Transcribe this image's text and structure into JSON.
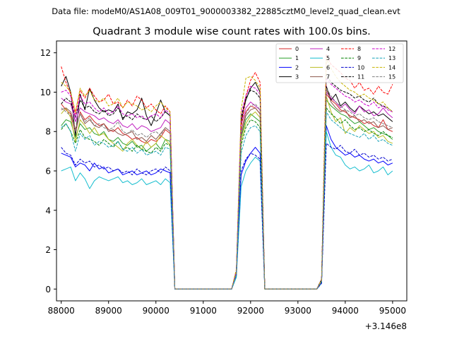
{
  "header": {
    "data_file": "Data file: modeM0/AS1A08_009T01_9000003382_22885cztM0_level2_quad_clean.evt"
  },
  "chart_data": {
    "type": "line",
    "title": "Quadrant 3 module wise count rates with 100.0s bins.",
    "xlabel": "",
    "ylabel": "",
    "x_offset_label": "+3.146e8",
    "xlim": [
      87900,
      95300
    ],
    "ylim": [
      -0.6,
      12.6
    ],
    "x_ticks": [
      88000,
      89000,
      90000,
      91000,
      92000,
      93000,
      94000,
      95000
    ],
    "x_tick_labels": [
      "88000",
      "89000",
      "90000",
      "91000",
      "92000",
      "93000",
      "94000",
      "95000"
    ],
    "y_ticks": [
      0,
      2,
      4,
      6,
      8,
      10,
      12
    ],
    "y_tick_labels": [
      "0",
      "2",
      "4",
      "6",
      "8",
      "10",
      "12"
    ],
    "grid": false,
    "legend_position": "top-right",
    "segments": [
      {
        "name": "seg1",
        "x_start": 88000,
        "step": 100,
        "count": 24
      },
      {
        "name": "seg2",
        "x_start": 91700,
        "step": 100,
        "count": 6
      },
      {
        "name": "seg3",
        "x_start": 93500,
        "step": 100,
        "count": 16
      }
    ],
    "series": [
      {
        "name": "0",
        "color": "#d62728",
        "dash": "solid",
        "values": [
          9.4,
          9.1,
          8.9,
          7.9,
          9.0,
          8.6,
          8.8,
          8.5,
          8.3,
          8.4,
          8.1,
          8.0,
          8.2,
          7.9,
          7.8,
          7.6,
          7.7,
          7.5,
          7.4,
          7.6,
          7.5,
          7.7,
          8.1,
          7.9,
          0.9,
          8.0,
          9.0,
          9.3,
          9.2,
          8.9,
          0.4,
          9.9,
          9.6,
          9.4,
          9.1,
          9.0,
          8.8,
          8.7,
          8.6,
          8.4,
          8.5,
          8.3,
          8.2,
          8.6,
          8.1,
          8.0,
          1.2
        ]
      },
      {
        "name": "1",
        "color": "#2ca02c",
        "dash": "solid",
        "values": [
          8.3,
          8.6,
          8.5,
          7.7,
          8.4,
          8.1,
          8.2,
          7.9,
          7.8,
          8.0,
          7.6,
          7.5,
          7.7,
          7.4,
          7.3,
          7.5,
          7.2,
          7.3,
          7.0,
          7.2,
          7.4,
          7.1,
          7.6,
          7.5,
          0.8,
          7.7,
          8.6,
          8.9,
          8.7,
          8.5,
          0.4,
          9.6,
          9.3,
          9.1,
          8.9,
          8.8,
          8.6,
          8.4,
          8.5,
          8.3,
          8.1,
          8.2,
          8.0,
          7.9,
          7.8,
          7.6,
          1.0
        ]
      },
      {
        "name": "2",
        "color": "#0000ff",
        "dash": "solid",
        "values": [
          6.9,
          6.8,
          6.7,
          6.2,
          6.4,
          6.3,
          6.0,
          6.4,
          6.1,
          6.2,
          5.9,
          6.0,
          6.1,
          5.8,
          5.9,
          6.0,
          5.8,
          5.9,
          6.0,
          5.8,
          5.9,
          6.1,
          6.0,
          5.9,
          0.7,
          5.8,
          6.5,
          6.9,
          7.2,
          6.9,
          0.3,
          8.3,
          7.6,
          7.2,
          7.0,
          6.8,
          6.9,
          6.7,
          6.8,
          6.6,
          6.5,
          6.6,
          6.4,
          6.5,
          6.3,
          6.4,
          0.7
        ]
      },
      {
        "name": "3",
        "color": "#000000",
        "dash": "solid",
        "values": [
          10.3,
          10.8,
          10.0,
          7.8,
          9.9,
          9.1,
          10.2,
          9.6,
          9.2,
          9.0,
          9.1,
          9.0,
          9.4,
          8.6,
          9.0,
          8.9,
          9.1,
          9.7,
          8.8,
          8.3,
          8.9,
          9.6,
          9.0,
          8.8,
          0.9,
          8.5,
          9.6,
          10.2,
          10.5,
          10.0,
          0.5,
          10.3,
          9.6,
          9.9,
          9.3,
          9.5,
          9.2,
          9.0,
          9.3,
          9.1,
          8.9,
          9.0,
          8.8,
          8.9,
          8.7,
          8.5,
          1.1
        ]
      },
      {
        "name": "4",
        "color": "#c020c0",
        "dash": "solid",
        "values": [
          9.7,
          9.5,
          9.4,
          8.5,
          9.2,
          9.0,
          8.9,
          8.8,
          8.6,
          8.7,
          8.5,
          8.4,
          8.6,
          8.3,
          8.2,
          8.4,
          8.1,
          8.3,
          8.2,
          8.0,
          8.1,
          8.2,
          8.6,
          8.4,
          0.9,
          8.3,
          9.2,
          9.5,
          9.3,
          9.1,
          0.5,
          10.0,
          9.7,
          9.5,
          9.2,
          9.4,
          9.1,
          8.9,
          9.3,
          9.0,
          9.1,
          8.8,
          8.9,
          9.2,
          8.9,
          8.7,
          1.1
        ]
      },
      {
        "name": "5",
        "color": "#17becf",
        "dash": "solid",
        "values": [
          6.0,
          6.1,
          6.2,
          5.5,
          5.9,
          5.6,
          5.1,
          5.5,
          5.7,
          5.6,
          5.5,
          5.6,
          5.7,
          5.4,
          5.5,
          5.3,
          5.4,
          5.6,
          5.3,
          5.4,
          5.5,
          5.3,
          5.6,
          5.4,
          0.6,
          5.2,
          6.0,
          6.4,
          6.7,
          6.5,
          0.3,
          8.0,
          7.2,
          6.8,
          6.7,
          6.3,
          6.1,
          6.2,
          6.0,
          6.1,
          6.3,
          5.9,
          6.0,
          6.2,
          5.8,
          6.0,
          0.7
        ]
      },
      {
        "name": "6",
        "color": "#bcbd22",
        "dash": "solid",
        "values": [
          8.9,
          9.2,
          8.7,
          7.5,
          8.6,
          8.3,
          7.9,
          8.2,
          7.8,
          7.9,
          7.6,
          7.4,
          7.2,
          7.0,
          7.4,
          7.6,
          7.3,
          7.1,
          7.5,
          7.2,
          7.4,
          7.8,
          7.6,
          7.3,
          0.8,
          7.5,
          8.4,
          8.8,
          9.0,
          8.7,
          0.4,
          9.8,
          9.0,
          8.5,
          8.7,
          7.9,
          8.2,
          8.0,
          8.3,
          8.1,
          7.9,
          8.0,
          7.7,
          7.8,
          7.5,
          7.4,
          0.9
        ]
      },
      {
        "name": "7",
        "color": "#8c564b",
        "dash": "solid",
        "values": [
          9.1,
          9.2,
          9.0,
          8.1,
          8.9,
          8.4,
          8.6,
          8.3,
          8.2,
          8.4,
          8.0,
          8.1,
          7.9,
          7.8,
          7.9,
          8.0,
          7.6,
          7.7,
          7.5,
          7.8,
          7.6,
          7.9,
          8.2,
          8.0,
          0.8,
          7.8,
          8.8,
          9.1,
          9.2,
          8.9,
          0.4,
          10.2,
          9.5,
          9.2,
          9.0,
          9.1,
          8.7,
          8.8,
          8.5,
          8.6,
          8.4,
          8.5,
          8.2,
          8.3,
          8.1,
          8.2,
          1.0
        ]
      },
      {
        "name": "8",
        "color": "#ff0000",
        "dash": "dash",
        "values": [
          11.3,
          10.5,
          9.9,
          8.9,
          10.1,
          9.7,
          10.2,
          9.8,
          9.5,
          9.6,
          9.9,
          9.4,
          9.5,
          9.2,
          9.6,
          9.3,
          9.8,
          9.6,
          9.2,
          9.4,
          9.1,
          8.9,
          9.3,
          9.0,
          1.0,
          8.2,
          9.8,
          10.6,
          11.0,
          10.5,
          0.5,
          11.9,
          11.4,
          11.2,
          11.0,
          10.7,
          10.6,
          10.2,
          10.5,
          10.1,
          10.2,
          9.9,
          10.3,
          10.0,
          9.9,
          10.4,
          1.1
        ]
      },
      {
        "name": "9",
        "color": "#008000",
        "dash": "dash",
        "values": [
          8.1,
          8.4,
          8.0,
          7.4,
          8.1,
          7.7,
          7.6,
          7.5,
          7.3,
          7.6,
          7.4,
          7.2,
          7.5,
          7.1,
          7.2,
          7.0,
          7.3,
          7.1,
          7.0,
          6.9,
          7.2,
          7.0,
          7.4,
          7.3,
          0.8,
          7.3,
          8.2,
          8.6,
          8.5,
          8.2,
          0.4,
          9.2,
          8.9,
          8.7,
          8.4,
          8.6,
          8.3,
          8.1,
          8.2,
          8.0,
          8.1,
          7.9,
          7.8,
          8.0,
          7.8,
          7.7,
          0.9
        ]
      },
      {
        "name": "10",
        "color": "#0000cc",
        "dash": "dash",
        "values": [
          7.2,
          6.9,
          6.8,
          6.3,
          6.6,
          6.4,
          6.5,
          6.2,
          6.3,
          6.1,
          6.2,
          6.0,
          6.1,
          5.9,
          6.0,
          5.8,
          6.1,
          5.9,
          5.8,
          6.0,
          6.1,
          5.9,
          6.2,
          6.0,
          0.7,
          6.0,
          6.6,
          6.9,
          6.8,
          6.6,
          0.3,
          7.4,
          7.2,
          7.1,
          7.3,
          7.0,
          6.9,
          7.1,
          6.8,
          6.9,
          6.7,
          6.8,
          6.6,
          6.7,
          6.5,
          6.6,
          0.8
        ]
      },
      {
        "name": "11",
        "color": "#000000",
        "dash": "dash",
        "values": [
          9.4,
          9.7,
          9.5,
          8.7,
          9.6,
          9.2,
          9.3,
          9.0,
          8.9,
          9.1,
          8.8,
          8.9,
          9.2,
          8.7,
          8.8,
          8.6,
          8.9,
          8.7,
          8.6,
          8.8,
          8.5,
          8.7,
          9.0,
          8.8,
          0.9,
          8.7,
          9.7,
          10.1,
          10.0,
          9.7,
          0.5,
          10.9,
          10.5,
          10.3,
          10.1,
          10.0,
          9.9,
          9.7,
          9.8,
          9.6,
          9.5,
          9.7,
          9.4,
          9.3,
          9.2,
          9.0,
          1.0
        ]
      },
      {
        "name": "12",
        "color": "#cc00cc",
        "dash": "dash",
        "values": [
          10.0,
          10.1,
          9.8,
          8.7,
          9.8,
          9.4,
          9.5,
          9.2,
          9.0,
          9.2,
          8.9,
          9.0,
          9.3,
          8.9,
          8.8,
          8.9,
          8.7,
          8.8,
          8.6,
          8.8,
          8.9,
          8.7,
          9.1,
          8.9,
          0.9,
          8.9,
          9.8,
          10.3,
          10.2,
          9.9,
          0.5,
          10.7,
          10.4,
          10.2,
          10.0,
          9.8,
          9.7,
          9.5,
          9.6,
          9.4,
          9.3,
          9.5,
          9.2,
          9.3,
          9.1,
          9.0,
          1.0
        ]
      },
      {
        "name": "13",
        "color": "#17a2b8",
        "dash": "dash",
        "values": [
          8.2,
          8.4,
          8.0,
          7.0,
          7.9,
          7.6,
          7.8,
          7.3,
          7.5,
          7.4,
          7.2,
          7.3,
          7.5,
          7.1,
          7.0,
          7.2,
          6.9,
          7.1,
          6.8,
          6.9,
          7.0,
          6.8,
          7.2,
          7.1,
          0.7,
          6.9,
          7.8,
          8.2,
          8.3,
          8.0,
          0.4,
          9.0,
          8.6,
          8.4,
          8.2,
          8.0,
          7.9,
          7.8,
          7.7,
          7.9,
          7.6,
          7.8,
          7.5,
          7.6,
          7.4,
          7.3,
          0.8
        ]
      },
      {
        "name": "14",
        "color": "#c8b400",
        "dash": "dash",
        "values": [
          10.5,
          10.3,
          10.0,
          9.0,
          10.2,
          9.8,
          10.1,
          9.6,
          9.5,
          9.7,
          9.3,
          9.4,
          9.7,
          9.2,
          9.5,
          9.4,
          9.3,
          9.1,
          9.2,
          9.0,
          9.3,
          9.5,
          9.2,
          9.0,
          1.0,
          9.1,
          10.7,
          10.8,
          10.6,
          10.2,
          0.5,
          11.7,
          11.2,
          10.8,
          10.5,
          10.3,
          10.1,
          10.0,
          9.8,
          9.9,
          9.7,
          9.6,
          9.4,
          9.5,
          9.2,
          9.0,
          1.1
        ]
      },
      {
        "name": "15",
        "color": "#7f7f7f",
        "dash": "dash",
        "values": [
          9.2,
          9.0,
          8.8,
          8.0,
          8.9,
          8.5,
          8.7,
          8.3,
          8.4,
          8.2,
          8.1,
          8.2,
          8.5,
          8.0,
          7.9,
          8.1,
          7.8,
          7.9,
          7.7,
          7.9,
          8.0,
          7.8,
          8.2,
          8.0,
          0.8,
          8.0,
          8.9,
          9.3,
          9.4,
          9.1,
          0.4,
          10.2,
          9.8,
          9.5,
          9.3,
          9.1,
          9.0,
          8.8,
          8.9,
          8.7,
          8.6,
          8.7,
          8.5,
          8.4,
          8.3,
          8.2,
          1.0
        ]
      }
    ]
  }
}
